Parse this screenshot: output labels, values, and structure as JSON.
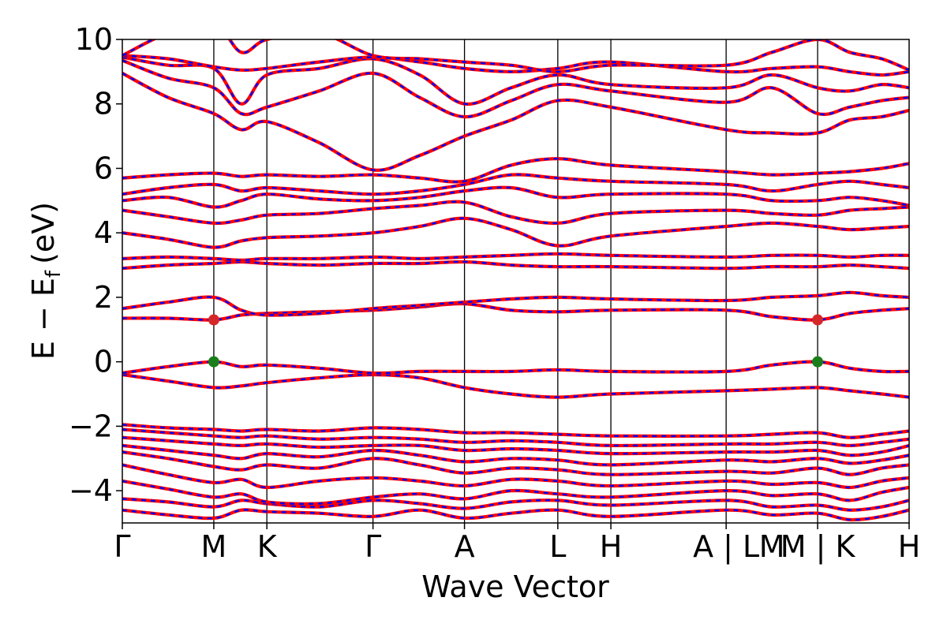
{
  "chart_data": {
    "type": "line",
    "xlabel": "Wave Vector",
    "ylabel": "E − E",
    "ylabel_sub": "f",
    "ylabel_unit": "(eV)",
    "ylim": [
      -5,
      10
    ],
    "yticks": [
      -4,
      -2,
      0,
      2,
      4,
      6,
      8,
      10
    ],
    "ytick_labels": [
      "−4",
      "−2",
      "0",
      "2",
      "4",
      "6",
      "8",
      "10"
    ],
    "xlim": [
      0,
      8.6
    ],
    "kpoints": [
      {
        "label": "Γ",
        "x": 0.0
      },
      {
        "label": "M",
        "x": 1.0
      },
      {
        "label": "K",
        "x": 1.58
      },
      {
        "label": "Γ",
        "x": 2.74
      },
      {
        "label": "A",
        "x": 3.74
      },
      {
        "label": "L",
        "x": 4.76
      },
      {
        "label": "H",
        "x": 5.34
      },
      {
        "label": "A | L",
        "x": 6.6
      },
      {
        "label": "M | K",
        "x": 7.6
      },
      {
        "label": "H",
        "x": 8.6
      }
    ],
    "extra_labels": [
      {
        "label": "M",
        "x": 7.1
      }
    ],
    "vertical_lines": [
      1.0,
      1.58,
      2.74,
      3.74,
      4.76,
      5.34,
      6.6,
      7.6
    ],
    "series": [
      {
        "color": "#ff0000",
        "style": "solid"
      },
      {
        "color": "#0000ff",
        "style": "dashed"
      }
    ],
    "bands": [
      [
        -4.6,
        -4.75,
        -4.85,
        -4.6,
        -4.65,
        -4.7,
        -4.8,
        -4.6,
        -4.85,
        -4.7,
        -4.6,
        -4.8,
        -4.6,
        -4.75,
        -4.7,
        -4.9,
        -4.8,
        -4.6
      ],
      [
        -4.25,
        -4.35,
        -4.5,
        -4.3,
        -4.4,
        -4.5,
        -4.3,
        -4.4,
        -4.55,
        -4.35,
        -4.3,
        -4.45,
        -4.3,
        -4.5,
        -4.45,
        -4.6,
        -4.5,
        -4.3
      ],
      [
        -3.7,
        -3.95,
        -4.2,
        -4.1,
        -4.35,
        -4.4,
        -4.2,
        -4.1,
        -4.25,
        -4.0,
        -4.1,
        -4.2,
        -4.0,
        -4.15,
        -4.1,
        -4.3,
        -4.05,
        -3.9
      ],
      [
        -3.2,
        -3.5,
        -3.75,
        -3.65,
        -3.9,
        -3.7,
        -3.6,
        -3.7,
        -3.85,
        -3.65,
        -3.7,
        -3.85,
        -3.7,
        -3.8,
        -3.75,
        -3.9,
        -3.7,
        -3.6
      ],
      [
        -2.8,
        -3.0,
        -3.25,
        -3.35,
        -3.2,
        -3.3,
        -3.0,
        -3.2,
        -3.45,
        -3.3,
        -3.35,
        -3.5,
        -3.4,
        -3.45,
        -3.3,
        -3.5,
        -3.3,
        -3.2
      ],
      [
        -2.6,
        -2.75,
        -2.9,
        -3.0,
        -2.85,
        -2.95,
        -2.75,
        -2.9,
        -3.1,
        -3.0,
        -3.05,
        -3.2,
        -3.05,
        -3.1,
        -3.0,
        -3.15,
        -3.05,
        -2.9
      ],
      [
        -2.35,
        -2.45,
        -2.55,
        -2.6,
        -2.55,
        -2.65,
        -2.6,
        -2.6,
        -2.75,
        -2.7,
        -2.75,
        -2.85,
        -2.8,
        -2.8,
        -2.75,
        -2.9,
        -2.8,
        -2.6
      ],
      [
        -2.1,
        -2.2,
        -2.3,
        -2.35,
        -2.3,
        -2.4,
        -2.35,
        -2.4,
        -2.5,
        -2.45,
        -2.5,
        -2.6,
        -2.55,
        -2.55,
        -2.5,
        -2.6,
        -2.5,
        -2.4
      ],
      [
        -1.95,
        -2.05,
        -2.1,
        -2.15,
        -2.1,
        -2.15,
        -2.05,
        -2.1,
        -2.2,
        -2.2,
        -2.25,
        -2.3,
        -2.3,
        -2.25,
        -2.2,
        -2.35,
        -2.25,
        -2.15
      ],
      [
        -0.4,
        -0.6,
        -0.8,
        -0.75,
        -0.65,
        -0.5,
        -0.4,
        -0.5,
        -0.8,
        -1.0,
        -1.1,
        -1.0,
        -0.9,
        -0.85,
        -0.8,
        -0.9,
        -1.0,
        -1.1
      ],
      [
        -0.35,
        -0.15,
        0.0,
        -0.15,
        -0.1,
        -0.2,
        -0.35,
        -0.3,
        -0.3,
        -0.3,
        -0.25,
        -0.3,
        -0.3,
        -0.1,
        0.0,
        -0.2,
        -0.3,
        -0.3
      ],
      [
        1.35,
        1.35,
        1.3,
        1.45,
        1.5,
        1.55,
        1.6,
        1.7,
        1.8,
        1.6,
        1.55,
        1.6,
        1.6,
        1.4,
        1.3,
        1.5,
        1.6,
        1.65
      ],
      [
        1.65,
        1.85,
        2.0,
        1.6,
        1.45,
        1.5,
        1.65,
        1.75,
        1.85,
        1.95,
        2.0,
        1.95,
        1.9,
        2.0,
        2.05,
        2.15,
        2.05,
        2.0
      ],
      [
        2.9,
        3.0,
        3.05,
        3.1,
        3.05,
        3.0,
        3.05,
        3.05,
        3.1,
        3.0,
        2.95,
        2.95,
        2.9,
        2.95,
        2.95,
        3.0,
        2.95,
        2.9
      ],
      [
        3.2,
        3.25,
        3.2,
        3.15,
        3.2,
        3.2,
        3.25,
        3.2,
        3.25,
        3.3,
        3.35,
        3.3,
        3.25,
        3.3,
        3.3,
        3.25,
        3.3,
        3.3
      ],
      [
        4.0,
        3.8,
        3.55,
        3.75,
        3.85,
        3.9,
        4.0,
        4.2,
        4.45,
        4.1,
        3.6,
        3.9,
        4.2,
        4.3,
        4.2,
        4.1,
        4.15,
        4.2
      ],
      [
        4.7,
        4.5,
        4.3,
        4.4,
        4.55,
        4.6,
        4.75,
        4.85,
        4.95,
        4.5,
        4.3,
        4.6,
        4.7,
        4.6,
        4.55,
        4.7,
        4.75,
        4.8
      ],
      [
        5.0,
        5.1,
        4.8,
        5.0,
        5.2,
        5.05,
        5.0,
        5.1,
        5.3,
        5.4,
        5.1,
        5.2,
        5.2,
        5.0,
        5.0,
        5.1,
        5.0,
        4.85
      ],
      [
        5.2,
        5.4,
        5.5,
        5.3,
        5.4,
        5.3,
        5.2,
        5.3,
        5.5,
        5.8,
        5.7,
        5.6,
        5.5,
        5.3,
        5.5,
        5.6,
        5.5,
        5.4
      ],
      [
        5.7,
        5.8,
        5.85,
        5.75,
        5.8,
        5.75,
        5.8,
        5.7,
        5.6,
        6.1,
        6.3,
        6.1,
        5.9,
        5.8,
        5.85,
        5.9,
        6.0,
        6.15
      ],
      [
        8.95,
        8.2,
        7.7,
        7.2,
        7.45,
        6.8,
        5.95,
        6.4,
        7.0,
        7.5,
        8.1,
        7.9,
        7.2,
        7.1,
        7.1,
        7.5,
        7.6,
        7.8
      ],
      [
        9.35,
        8.8,
        8.5,
        7.7,
        7.9,
        8.4,
        8.95,
        8.2,
        7.6,
        8.1,
        8.6,
        8.4,
        8.05,
        8.5,
        7.7,
        7.9,
        8.1,
        8.2
      ],
      [
        9.45,
        9.2,
        9.1,
        8.0,
        8.9,
        9.1,
        9.4,
        8.9,
        8.0,
        8.5,
        8.9,
        8.6,
        8.5,
        8.9,
        8.5,
        8.4,
        8.6,
        8.5
      ],
      [
        9.5,
        9.4,
        9.15,
        9.05,
        9.1,
        9.3,
        9.45,
        9.3,
        9.1,
        9.0,
        9.1,
        9.3,
        9.0,
        9.1,
        9.15,
        9.0,
        8.9,
        9.0
      ],
      [
        9.5,
        10.2,
        10.5,
        9.6,
        10.0,
        10.2,
        9.5,
        9.4,
        9.3,
        9.2,
        9.0,
        9.2,
        9.2,
        9.6,
        10.0,
        9.6,
        9.4,
        9.05
      ]
    ],
    "band_x": [
      0.0,
      0.5,
      1.0,
      1.3,
      1.58,
      2.15,
      2.74,
      3.25,
      3.74,
      4.25,
      4.76,
      5.34,
      6.6,
      7.1,
      7.6,
      7.95,
      8.3,
      8.6
    ],
    "markers": [
      {
        "x": 1.0,
        "y": 1.3,
        "color": "#d62728"
      },
      {
        "x": 1.0,
        "y": 0.0,
        "color": "#1a7f1a"
      },
      {
        "x": 7.6,
        "y": 1.3,
        "color": "#d62728"
      },
      {
        "x": 7.6,
        "y": 0.0,
        "color": "#1a7f1a"
      }
    ]
  }
}
